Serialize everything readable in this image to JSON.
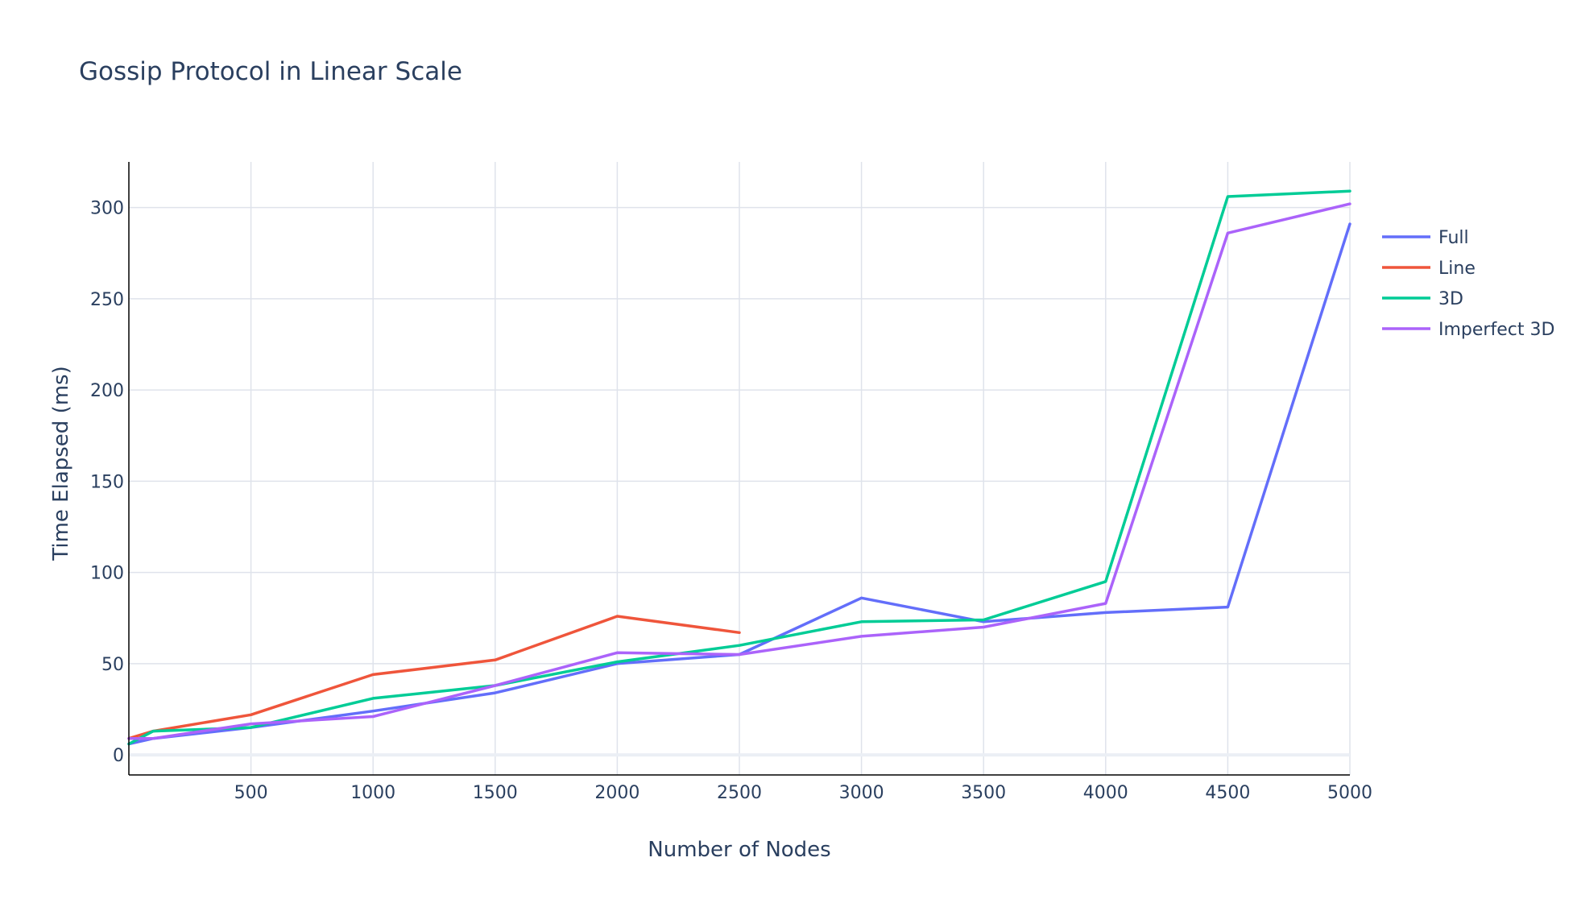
{
  "chart_data": {
    "type": "line",
    "title": "Gossip Protocol in Linear Scale",
    "xlabel": "Number of Nodes",
    "ylabel": "Time Elapsed (ms)",
    "xlim": [
      0,
      5000
    ],
    "ylim": [
      -11,
      325
    ],
    "x_ticks": [
      500,
      1000,
      1500,
      2000,
      2500,
      3000,
      3500,
      4000,
      4500,
      5000
    ],
    "y_ticks": [
      0,
      50,
      100,
      150,
      200,
      250,
      300
    ],
    "grid": true,
    "legend_position": "right",
    "series": [
      {
        "name": "Full",
        "color": "#636efa",
        "x": [
          0,
          100,
          500,
          1000,
          1500,
          2000,
          2500,
          3000,
          3500,
          4000,
          4500,
          5000
        ],
        "y": [
          6,
          9,
          15,
          24,
          34,
          50,
          55,
          86,
          73,
          78,
          81,
          291
        ]
      },
      {
        "name": "Line",
        "color": "#ef553b",
        "x": [
          0,
          100,
          500,
          1000,
          1500,
          2000,
          2500
        ],
        "y": [
          9,
          13,
          22,
          44,
          52,
          76,
          67
        ]
      },
      {
        "name": "3D",
        "color": "#00cc96",
        "x": [
          0,
          100,
          500,
          1000,
          1500,
          2000,
          2500,
          3000,
          3500,
          4000,
          4500,
          5000
        ],
        "y": [
          6,
          13,
          15,
          31,
          38,
          51,
          60,
          73,
          74,
          95,
          306,
          309
        ]
      },
      {
        "name": "Imperfect 3D",
        "color": "#ab63fa",
        "x": [
          0,
          100,
          500,
          1000,
          1500,
          2000,
          2500,
          3000,
          3500,
          4000,
          4500,
          5000
        ],
        "y": [
          9,
          9,
          17,
          21,
          38,
          56,
          55,
          65,
          70,
          83,
          286,
          302
        ]
      }
    ]
  }
}
